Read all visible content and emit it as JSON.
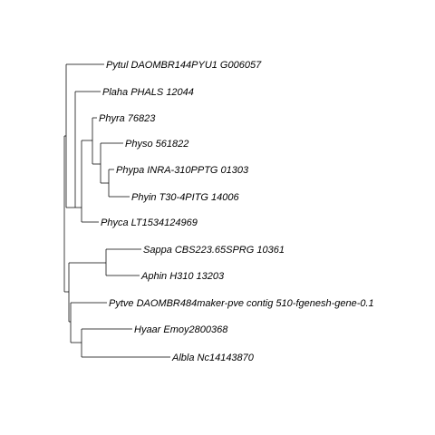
{
  "figure": {
    "type": "phylogenetic-tree",
    "line_color": "#000000",
    "background_color": "#ffffff"
  },
  "tips": [
    {
      "id": "pytul",
      "label": "Pytul DAOMBR144PYU1 G006057"
    },
    {
      "id": "plaha",
      "label": "Plaha PHALS 12044"
    },
    {
      "id": "phyra",
      "label": "Phyra 76823"
    },
    {
      "id": "physo",
      "label": "Physo 561822"
    },
    {
      "id": "phypa",
      "label": "Phypa INRA-310PPTG 01303"
    },
    {
      "id": "phyin",
      "label": "Phyin T30-4PITG 14006"
    },
    {
      "id": "phyca",
      "label": "Phyca LT1534124969"
    },
    {
      "id": "sappa",
      "label": "Sappa CBS223.65SPRG 10361"
    },
    {
      "id": "aphin",
      "label": "Aphin H310 13203"
    },
    {
      "id": "pytve",
      "label": "Pytve DAOMBR484maker-pve contig 510-fgenesh-gene-0.1"
    },
    {
      "id": "hyaar",
      "label": "Hyaar Emoy2800368"
    },
    {
      "id": "albla",
      "label": "Albla Nc14143870"
    }
  ]
}
